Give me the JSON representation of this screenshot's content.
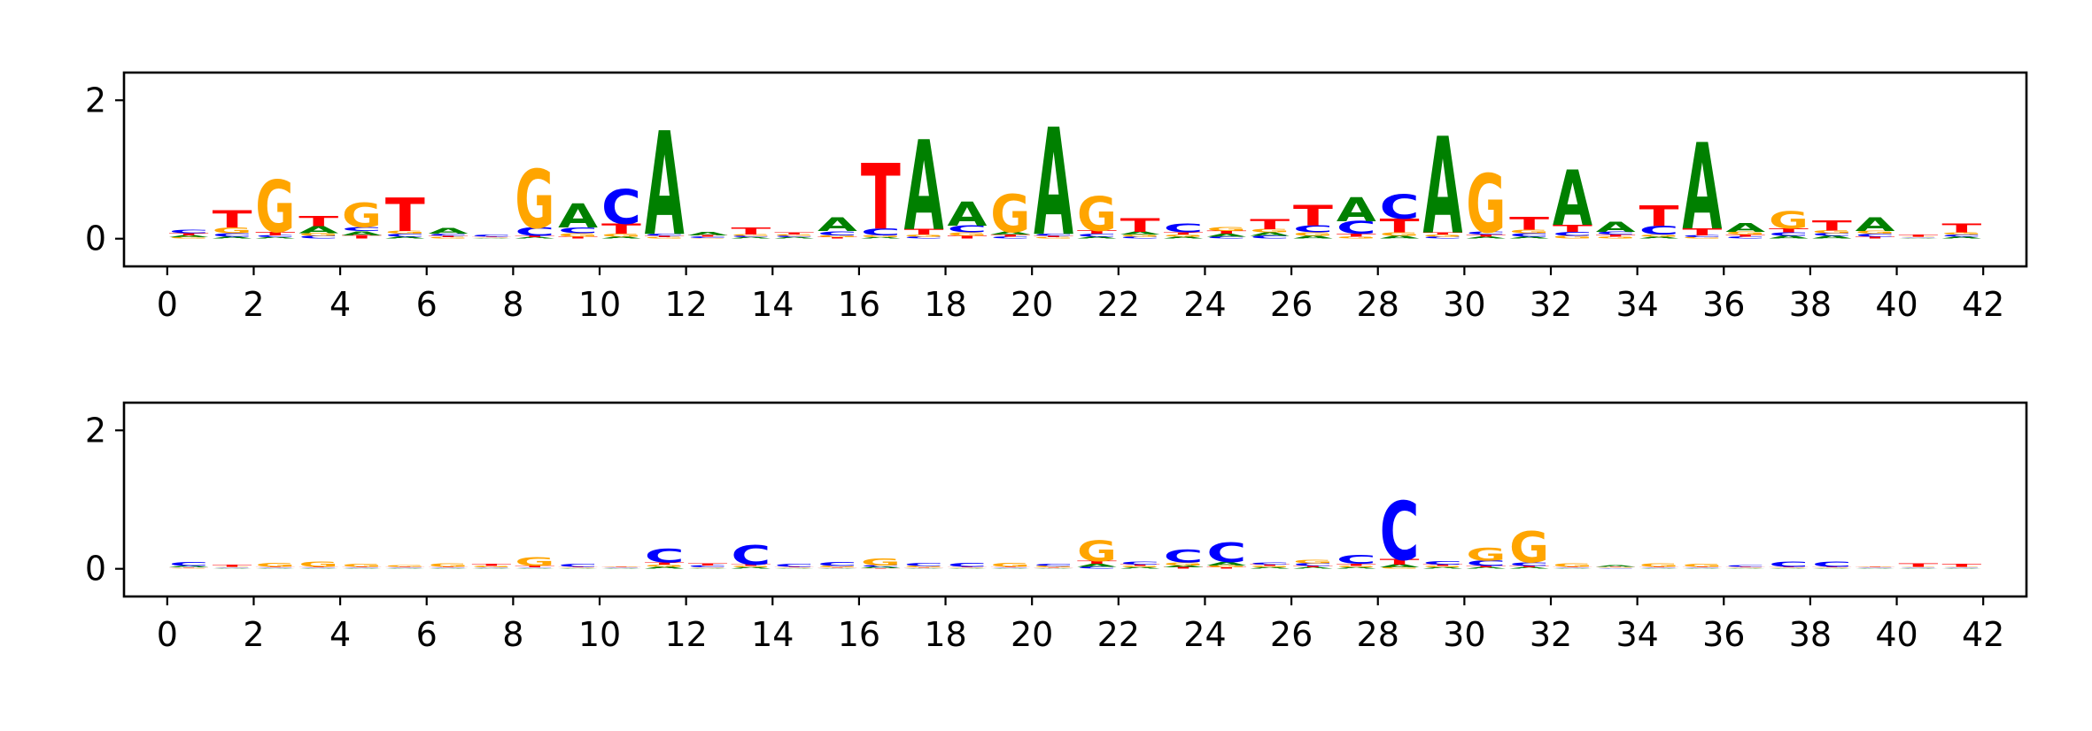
{
  "chart_data": [
    {
      "type": "sequence-logo",
      "title": "",
      "xlabel": "",
      "ylabel": "",
      "xlim": [
        -1,
        43
      ],
      "ylim": [
        -0.4,
        2.4
      ],
      "xticks": [
        0,
        2,
        4,
        6,
        8,
        10,
        12,
        14,
        16,
        18,
        20,
        22,
        24,
        26,
        28,
        30,
        32,
        34,
        36,
        38,
        40,
        42
      ],
      "yticks": [
        0,
        2
      ],
      "letters": [
        "A",
        "C",
        "G",
        "T"
      ],
      "letter_colors": {
        "A": "#008000",
        "C": "#0000ff",
        "G": "#ffa500",
        "T": "#ff0000"
      },
      "positions": [
        {
          "x": 0.5,
          "A": 0.03,
          "C": 0.05,
          "G": 0.02,
          "T": 0.03
        },
        {
          "x": 1.5,
          "A": 0.03,
          "C": 0.05,
          "G": 0.08,
          "T": 0.25
        },
        {
          "x": 2.5,
          "A": 0.02,
          "C": 0.03,
          "G": 0.75,
          "T": 0.05
        },
        {
          "x": 3.5,
          "A": 0.1,
          "C": 0.04,
          "G": 0.04,
          "T": 0.15
        },
        {
          "x": 4.5,
          "A": 0.06,
          "C": 0.06,
          "G": 0.35,
          "T": 0.05
        },
        {
          "x": 5.5,
          "A": 0.03,
          "C": 0.04,
          "G": 0.04,
          "T": 0.48
        },
        {
          "x": 6.5,
          "A": 0.08,
          "C": 0.03,
          "G": 0.02,
          "T": 0.02
        },
        {
          "x": 7.5,
          "A": 0.01,
          "C": 0.03,
          "G": 0.01,
          "T": 0.01
        },
        {
          "x": 8.5,
          "A": 0.02,
          "C": 0.12,
          "G": 0.85,
          "T": 0.02
        },
        {
          "x": 9.5,
          "A": 0.35,
          "C": 0.08,
          "G": 0.05,
          "T": 0.03
        },
        {
          "x": 10.5,
          "A": 0.03,
          "C": 0.5,
          "G": 0.04,
          "T": 0.15
        },
        {
          "x": 11.5,
          "A": 1.5,
          "C": 0.03,
          "G": 0.02,
          "T": 0.02
        },
        {
          "x": 12.5,
          "A": 0.05,
          "C": 0.02,
          "G": 0.01,
          "T": 0.02
        },
        {
          "x": 13.5,
          "A": 0.02,
          "C": 0.02,
          "G": 0.02,
          "T": 0.1
        },
        {
          "x": 14.5,
          "A": 0.02,
          "C": 0.02,
          "G": 0.02,
          "T": 0.03
        },
        {
          "x": 15.5,
          "A": 0.2,
          "C": 0.06,
          "G": 0.03,
          "T": 0.02
        },
        {
          "x": 16.5,
          "A": 0.02,
          "C": 0.1,
          "G": 0.03,
          "T": 0.95
        },
        {
          "x": 17.5,
          "A": 1.3,
          "C": 0.03,
          "G": 0.03,
          "T": 0.08
        },
        {
          "x": 18.5,
          "A": 0.35,
          "C": 0.1,
          "G": 0.05,
          "T": 0.04
        },
        {
          "x": 19.5,
          "A": 0.04,
          "C": 0.03,
          "G": 0.55,
          "T": 0.03
        },
        {
          "x": 20.5,
          "A": 1.55,
          "C": 0.03,
          "G": 0.02,
          "T": 0.02
        },
        {
          "x": 21.5,
          "A": 0.03,
          "C": 0.04,
          "G": 0.5,
          "T": 0.05
        },
        {
          "x": 22.5,
          "A": 0.04,
          "C": 0.03,
          "G": 0.03,
          "T": 0.2
        },
        {
          "x": 23.5,
          "A": 0.03,
          "C": 0.12,
          "G": 0.03,
          "T": 0.03
        },
        {
          "x": 24.5,
          "A": 0.04,
          "C": 0.03,
          "G": 0.06,
          "T": 0.04
        },
        {
          "x": 25.5,
          "A": 0.05,
          "C": 0.04,
          "G": 0.05,
          "T": 0.15
        },
        {
          "x": 26.5,
          "A": 0.04,
          "C": 0.1,
          "G": 0.05,
          "T": 0.3
        },
        {
          "x": 27.5,
          "A": 0.35,
          "C": 0.18,
          "G": 0.03,
          "T": 0.04
        },
        {
          "x": 28.5,
          "A": 0.04,
          "C": 0.35,
          "G": 0.05,
          "T": 0.2
        },
        {
          "x": 29.5,
          "A": 1.4,
          "C": 0.03,
          "G": 0.03,
          "T": 0.03
        },
        {
          "x": 30.5,
          "A": 0.03,
          "C": 0.04,
          "G": 0.85,
          "T": 0.03
        },
        {
          "x": 31.5,
          "A": 0.03,
          "C": 0.05,
          "G": 0.05,
          "T": 0.18
        },
        {
          "x": 32.5,
          "A": 0.8,
          "C": 0.06,
          "G": 0.04,
          "T": 0.1
        },
        {
          "x": 33.5,
          "A": 0.15,
          "C": 0.04,
          "G": 0.03,
          "T": 0.03
        },
        {
          "x": 34.5,
          "A": 0.03,
          "C": 0.12,
          "G": 0.03,
          "T": 0.3
        },
        {
          "x": 35.5,
          "A": 1.25,
          "C": 0.03,
          "G": 0.02,
          "T": 0.1
        },
        {
          "x": 36.5,
          "A": 0.12,
          "C": 0.03,
          "G": 0.04,
          "T": 0.03
        },
        {
          "x": 37.5,
          "A": 0.04,
          "C": 0.05,
          "G": 0.25,
          "T": 0.06
        },
        {
          "x": 38.5,
          "A": 0.04,
          "C": 0.04,
          "G": 0.04,
          "T": 0.15
        },
        {
          "x": 39.5,
          "A": 0.2,
          "C": 0.04,
          "G": 0.04,
          "T": 0.03
        },
        {
          "x": 40.5,
          "A": 0.01,
          "C": 0.01,
          "G": 0.01,
          "T": 0.03
        },
        {
          "x": 41.5,
          "A": 0.03,
          "C": 0.03,
          "G": 0.03,
          "T": 0.12
        }
      ]
    },
    {
      "type": "sequence-logo",
      "title": "",
      "xlabel": "",
      "ylabel": "",
      "xlim": [
        -1,
        43
      ],
      "ylim": [
        -0.4,
        2.4
      ],
      "xticks": [
        0,
        2,
        4,
        6,
        8,
        10,
        12,
        14,
        16,
        18,
        20,
        22,
        24,
        26,
        28,
        30,
        32,
        34,
        36,
        38,
        40,
        42
      ],
      "yticks": [
        0,
        2
      ],
      "letters": [
        "A",
        "C",
        "G",
        "T"
      ],
      "letter_colors": {
        "A": "#008000",
        "C": "#0000ff",
        "G": "#ffa500",
        "T": "#ff0000"
      },
      "positions": [
        {
          "x": 0.5,
          "A": 0.02,
          "C": 0.06,
          "G": 0.01,
          "T": 0.01
        },
        {
          "x": 1.5,
          "A": 0.01,
          "C": 0.01,
          "G": 0.01,
          "T": 0.03
        },
        {
          "x": 2.5,
          "A": 0.01,
          "C": 0.01,
          "G": 0.06,
          "T": 0.01
        },
        {
          "x": 3.5,
          "A": 0.01,
          "C": 0.01,
          "G": 0.07,
          "T": 0.01
        },
        {
          "x": 4.5,
          "A": 0.01,
          "C": 0.01,
          "G": 0.04,
          "T": 0.01
        },
        {
          "x": 5.5,
          "A": 0.01,
          "C": 0.01,
          "G": 0.02,
          "T": 0.01
        },
        {
          "x": 6.5,
          "A": 0.01,
          "C": 0.01,
          "G": 0.05,
          "T": 0.01
        },
        {
          "x": 7.5,
          "A": 0.01,
          "C": 0.01,
          "G": 0.02,
          "T": 0.03
        },
        {
          "x": 8.5,
          "A": 0.01,
          "C": 0.01,
          "G": 0.12,
          "T": 0.02
        },
        {
          "x": 9.5,
          "A": 0.01,
          "C": 0.04,
          "G": 0.01,
          "T": 0.01
        },
        {
          "x": 10.5,
          "A": 0.01,
          "C": 0.01,
          "G": 0.01,
          "T": 0.01
        },
        {
          "x": 11.5,
          "A": 0.03,
          "C": 0.2,
          "G": 0.03,
          "T": 0.03
        },
        {
          "x": 12.5,
          "A": 0.01,
          "C": 0.03,
          "G": 0.01,
          "T": 0.03
        },
        {
          "x": 13.5,
          "A": 0.02,
          "C": 0.28,
          "G": 0.02,
          "T": 0.02
        },
        {
          "x": 14.5,
          "A": 0.01,
          "C": 0.04,
          "G": 0.01,
          "T": 0.01
        },
        {
          "x": 15.5,
          "A": 0.01,
          "C": 0.06,
          "G": 0.02,
          "T": 0.01
        },
        {
          "x": 16.5,
          "A": 0.02,
          "C": 0.02,
          "G": 0.1,
          "T": 0.01
        },
        {
          "x": 17.5,
          "A": 0.01,
          "C": 0.04,
          "G": 0.02,
          "T": 0.01
        },
        {
          "x": 18.5,
          "A": 0.01,
          "C": 0.06,
          "G": 0.01,
          "T": 0.01
        },
        {
          "x": 19.5,
          "A": 0.01,
          "C": 0.01,
          "G": 0.06,
          "T": 0.01
        },
        {
          "x": 20.5,
          "A": 0.01,
          "C": 0.03,
          "G": 0.02,
          "T": 0.01
        },
        {
          "x": 21.5,
          "A": 0.04,
          "C": 0.03,
          "G": 0.3,
          "T": 0.04
        },
        {
          "x": 22.5,
          "A": 0.02,
          "C": 0.04,
          "G": 0.02,
          "T": 0.02
        },
        {
          "x": 23.5,
          "A": 0.03,
          "C": 0.18,
          "G": 0.04,
          "T": 0.02
        },
        {
          "x": 24.5,
          "A": 0.05,
          "C": 0.28,
          "G": 0.03,
          "T": 0.02
        },
        {
          "x": 25.5,
          "A": 0.02,
          "C": 0.03,
          "G": 0.02,
          "T": 0.02
        },
        {
          "x": 26.5,
          "A": 0.02,
          "C": 0.04,
          "G": 0.05,
          "T": 0.02
        },
        {
          "x": 27.5,
          "A": 0.02,
          "C": 0.12,
          "G": 0.02,
          "T": 0.03
        },
        {
          "x": 28.5,
          "A": 0.04,
          "C": 0.85,
          "G": 0.02,
          "T": 0.08
        },
        {
          "x": 29.5,
          "A": 0.02,
          "C": 0.05,
          "G": 0.02,
          "T": 0.02
        },
        {
          "x": 30.5,
          "A": 0.02,
          "C": 0.08,
          "G": 0.18,
          "T": 0.02
        },
        {
          "x": 31.5,
          "A": 0.02,
          "C": 0.05,
          "G": 0.45,
          "T": 0.02
        },
        {
          "x": 32.5,
          "A": 0.01,
          "C": 0.01,
          "G": 0.05,
          "T": 0.01
        },
        {
          "x": 33.5,
          "A": 0.02,
          "C": 0.01,
          "G": 0.01,
          "T": 0.01
        },
        {
          "x": 34.5,
          "A": 0.01,
          "C": 0.01,
          "G": 0.05,
          "T": 0.01
        },
        {
          "x": 35.5,
          "A": 0.01,
          "C": 0.01,
          "G": 0.04,
          "T": 0.01
        },
        {
          "x": 36.5,
          "A": 0.01,
          "C": 0.02,
          "G": 0.01,
          "T": 0.01
        },
        {
          "x": 37.5,
          "A": 0.01,
          "C": 0.07,
          "G": 0.01,
          "T": 0.01
        },
        {
          "x": 38.5,
          "A": 0.01,
          "C": 0.07,
          "G": 0.01,
          "T": 0.01
        },
        {
          "x": 39.5,
          "A": 0.01,
          "C": 0.01,
          "G": 0.01,
          "T": 0.01
        },
        {
          "x": 40.5,
          "A": 0.01,
          "C": 0.01,
          "G": 0.01,
          "T": 0.05
        },
        {
          "x": 41.5,
          "A": 0.01,
          "C": 0.01,
          "G": 0.01,
          "T": 0.04
        }
      ]
    }
  ]
}
